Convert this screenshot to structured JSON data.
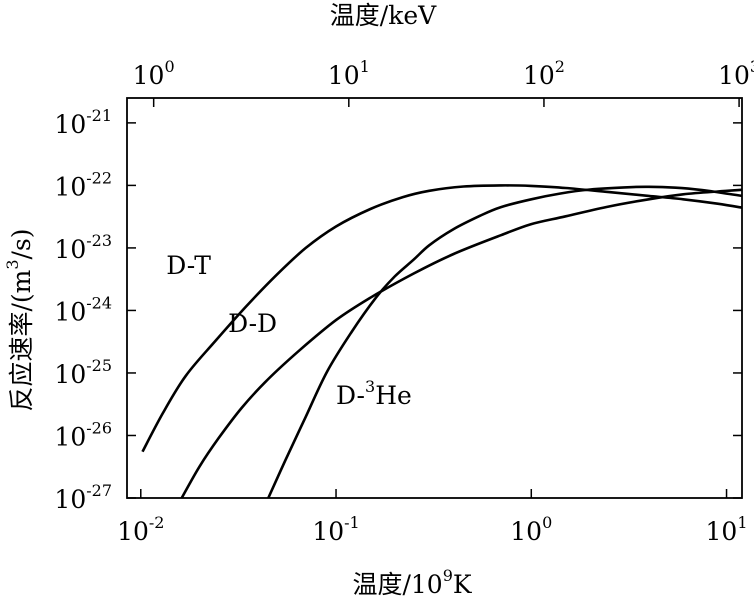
{
  "chart_data": {
    "type": "line",
    "title": "",
    "xlabel": "温度/10^9K",
    "xlabel_parts": {
      "text": "温度/10",
      "sup": "9",
      "suffix": "K"
    },
    "x2label": "温度/keV",
    "ylabel": "反应速率/(m^3/s)",
    "ylabel_parts": {
      "text": "反应速率/(m",
      "sup": "3",
      "suffix": "/s)"
    },
    "x_scale": "log",
    "y_scale": "log",
    "xlim": [
      0.0085,
      12
    ],
    "x2lim": [
      0.73,
      1035
    ],
    "ylim": [
      1e-27,
      2.5e-21
    ],
    "x_ticks": [
      {
        "value": 0.01,
        "base": "10",
        "exp": "-2"
      },
      {
        "value": 0.1,
        "base": "10",
        "exp": "-1"
      },
      {
        "value": 1,
        "base": "10",
        "exp": "0"
      },
      {
        "value": 10,
        "base": "10",
        "exp": "1"
      }
    ],
    "x2_ticks": [
      {
        "value": 1,
        "base": "10",
        "exp": "0"
      },
      {
        "value": 10,
        "base": "10",
        "exp": "1"
      },
      {
        "value": 100,
        "base": "10",
        "exp": "2"
      },
      {
        "value": 1000,
        "base": "10",
        "exp": "3"
      }
    ],
    "y_ticks": [
      {
        "value": 1e-21,
        "base": "10",
        "exp": "-21"
      },
      {
        "value": 1e-22,
        "base": "10",
        "exp": "-22"
      },
      {
        "value": 1e-23,
        "base": "10",
        "exp": "-23"
      },
      {
        "value": 1e-24,
        "base": "10",
        "exp": "-24"
      },
      {
        "value": 1e-25,
        "base": "10",
        "exp": "-25"
      },
      {
        "value": 1e-26,
        "base": "10",
        "exp": "-26"
      },
      {
        "value": 1e-27,
        "base": "10",
        "exp": "-27"
      }
    ],
    "grid": false,
    "legend": "none",
    "series": [
      {
        "name": "D-T",
        "label_parts": {
          "text": "D-T",
          "sup": "",
          "suffix": ""
        },
        "label_at": {
          "x": 0.0135,
          "y": 3.8e-24
        },
        "x": [
          0.0102,
          0.013,
          0.017,
          0.024,
          0.035,
          0.05,
          0.07,
          0.1,
          0.15,
          0.22,
          0.3,
          0.45,
          0.7,
          1.0,
          1.5,
          2.5,
          4,
          6,
          9,
          12
        ],
        "y": [
          5.5e-27,
          2.3e-26,
          9e-26,
          3.2e-25,
          1.2e-24,
          3.8e-24,
          1e-23,
          2.2e-23,
          4.2e-23,
          6.5e-23,
          8.2e-23,
          9.6e-23,
          1e-22,
          9.8e-23,
          9.1e-23,
          7.8e-23,
          6.8e-23,
          6e-23,
          5.1e-23,
          4.4e-23
        ],
        "color": "#000000"
      },
      {
        "name": "D-D",
        "label_parts": {
          "text": "D-D",
          "sup": "",
          "suffix": ""
        },
        "label_at": {
          "x": 0.028,
          "y": 4.5e-25
        },
        "x": [
          0.0162,
          0.02,
          0.025,
          0.033,
          0.045,
          0.065,
          0.1,
          0.15,
          0.25,
          0.4,
          0.7,
          1.0,
          1.5,
          2.5,
          4,
          6,
          9,
          12
        ],
        "y": [
          1e-27,
          3.2e-27,
          9e-27,
          2.8e-26,
          8e-26,
          2.3e-25,
          7e-25,
          1.6e-24,
          3.9e-24,
          8e-24,
          1.6e-23,
          2.4e-23,
          3.2e-23,
          4.6e-23,
          6e-23,
          7.2e-23,
          8e-23,
          8.5e-23
        ],
        "color": "#000000"
      },
      {
        "name": "D-3He",
        "label_parts": {
          "text": "D-",
          "sup": "3",
          "suffix": "He"
        },
        "label_at": {
          "x": 0.1,
          "y": 3.2e-26
        },
        "x": [
          0.045,
          0.055,
          0.07,
          0.09,
          0.12,
          0.16,
          0.2,
          0.25,
          0.3,
          0.4,
          0.55,
          0.7,
          1.0,
          1.4,
          2.0,
          3.0,
          4.0,
          5.5,
          7.5,
          10,
          12
        ],
        "y": [
          1e-27,
          4e-27,
          2e-26,
          1.05e-25,
          4.5e-25,
          1.6e-24,
          3.5e-24,
          6.5e-24,
          1.1e-23,
          2e-23,
          3.3e-23,
          4.5e-23,
          6e-23,
          7.4e-23,
          8.6e-23,
          9.3e-23,
          9.5e-23,
          9.2e-23,
          8.4e-23,
          7.4e-23,
          6.8e-23
        ],
        "color": "#000000"
      }
    ]
  }
}
